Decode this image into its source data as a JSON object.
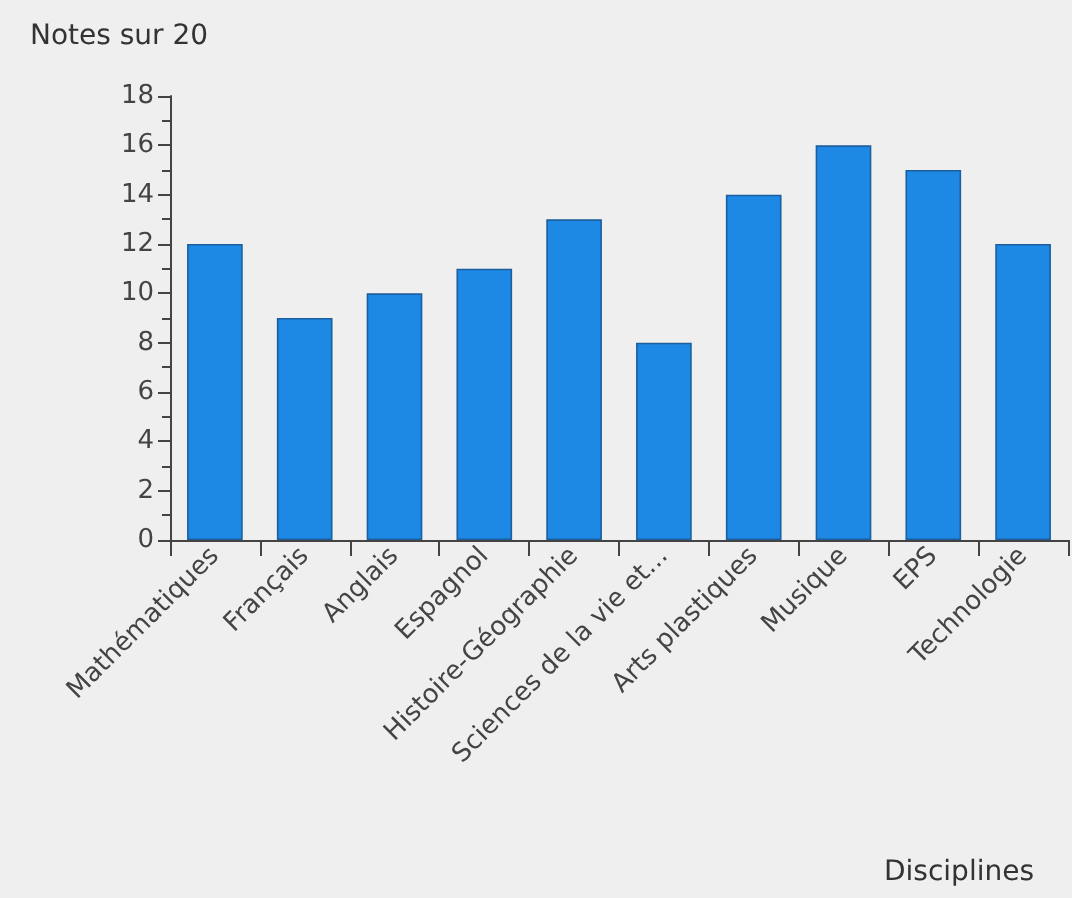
{
  "chart_data": {
    "type": "bar",
    "ylabel": "Notes sur 20",
    "xlabel": "Disciplines",
    "categories": [
      "Mathématiques",
      "Français",
      "Anglais",
      "Espagnol",
      "Histoire-Géographie",
      "Sciences de la vie et...",
      "Arts plastiques",
      "Musique",
      "EPS",
      "Technologie"
    ],
    "values": [
      12,
      9,
      10,
      11,
      13,
      8,
      14,
      16,
      15,
      12
    ],
    "color": "#1e88e5",
    "ylim": [
      0,
      18
    ],
    "yticks": [
      0,
      2,
      4,
      6,
      8,
      10,
      12,
      14,
      16,
      18
    ],
    "grid": false
  }
}
